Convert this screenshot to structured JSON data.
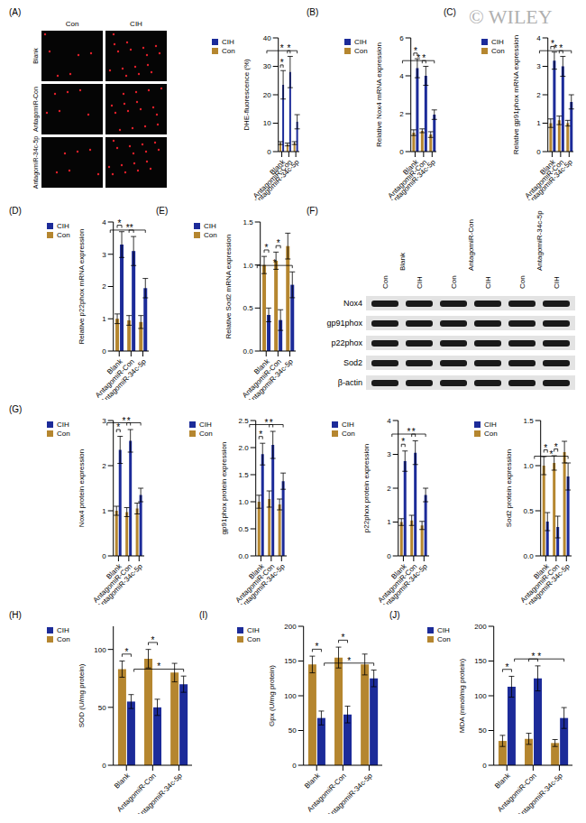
{
  "watermark": "© WILEY",
  "images": {
    "panel": "(A)",
    "columns": [
      "Con",
      "CIH"
    ],
    "rows": [
      "Blank",
      "AntagomiR-Con",
      "AntagomiR-34c-5p"
    ]
  },
  "blot": {
    "panel": "(F)",
    "groups": [
      "Blank",
      "AntagomiR-Con",
      "AntagomiR-34c-5p"
    ],
    "lanes": [
      "Con",
      "CIH"
    ],
    "proteins": [
      "Nox4",
      "gp91phox",
      "p22phox",
      "Sod2",
      "β-actin"
    ]
  },
  "chart_data": [
    {
      "type": "bar",
      "y_label": "DHE-fluorescence (%)",
      "categories": [
        "Blank",
        "AntagomiR-Con",
        "AntagomiR-34c-5p"
      ],
      "series": [
        {
          "name": "Con",
          "color": "#b5862f",
          "values": [
            3,
            2.5,
            3
          ],
          "errors": [
            0.5,
            0.5,
            0.5
          ]
        },
        {
          "name": "CIH",
          "color": "#1c2b99",
          "values": [
            23.5,
            28,
            10.5
          ],
          "errors": [
            5,
            5.5,
            2.5
          ]
        }
      ],
      "ylim": [
        0,
        40
      ],
      "yticks": [
        0,
        10,
        20,
        30,
        40
      ],
      "legend": "upper left",
      "annotations": [
        {
          "text": "*",
          "from": [
            "Blank",
            "Con"
          ],
          "to": [
            "Blank",
            "CIH"
          ]
        },
        {
          "text": "*",
          "from": [
            "AntagomiR-Con",
            "Con"
          ],
          "to": [
            "AntagomiR-Con",
            "CIH"
          ]
        },
        {
          "text": "*",
          "from": [
            "AntagomiR-Con",
            "CIH"
          ],
          "to": [
            "AntagomiR-34c-5p",
            "CIH"
          ]
        }
      ]
    },
    {
      "type": "bar",
      "panel": "(B)",
      "y_label": "Relative Nox4 mRNA expression",
      "categories": [
        "Blank",
        "AntagomiR-Con",
        "AntagomiR-34c-5p"
      ],
      "series": [
        {
          "name": "Con",
          "color": "#b5862f",
          "values": [
            1.0,
            1.1,
            0.9
          ],
          "errors": [
            0.15,
            0.1,
            0.15
          ]
        },
        {
          "name": "CIH",
          "color": "#1c2b99",
          "values": [
            4.4,
            4.0,
            1.95
          ],
          "errors": [
            0.5,
            0.5,
            0.25
          ]
        }
      ],
      "ylim": [
        0,
        6
      ],
      "yticks": [
        0,
        2,
        4,
        6
      ],
      "legend": "upper left",
      "annotations": [
        {
          "text": "*",
          "from": [
            "Blank",
            "Con"
          ],
          "to": [
            "Blank",
            "CIH"
          ]
        },
        {
          "text": "*",
          "from": [
            "AntagomiR-Con",
            "Con"
          ],
          "to": [
            "AntagomiR-Con",
            "CIH"
          ]
        },
        {
          "text": "*",
          "from": [
            "AntagomiR-Con",
            "CIH"
          ],
          "to": [
            "AntagomiR-34c-5p",
            "CIH"
          ]
        }
      ]
    },
    {
      "type": "bar",
      "panel": "(C)",
      "y_label": "Relative gp91phox mRNA expression",
      "categories": [
        "Blank",
        "AntagomiR-Con",
        "AntagomiR-34c-5p"
      ],
      "series": [
        {
          "name": "Con",
          "color": "#b5862f",
          "values": [
            1.0,
            1.1,
            1.0
          ],
          "errors": [
            0.15,
            0.15,
            0.1
          ]
        },
        {
          "name": "CIH",
          "color": "#1c2b99",
          "values": [
            3.2,
            3.0,
            1.75
          ],
          "errors": [
            0.3,
            0.35,
            0.25
          ]
        }
      ],
      "ylim": [
        0,
        4
      ],
      "yticks": [
        0,
        1,
        2,
        3,
        4
      ],
      "legend": "upper left",
      "annotations": [
        {
          "text": "*",
          "from": [
            "Blank",
            "Con"
          ],
          "to": [
            "Blank",
            "CIH"
          ]
        },
        {
          "text": "*",
          "from": [
            "AntagomiR-Con",
            "Con"
          ],
          "to": [
            "AntagomiR-Con",
            "CIH"
          ]
        },
        {
          "text": "*",
          "from": [
            "AntagomiR-Con",
            "CIH"
          ],
          "to": [
            "AntagomiR-34c-5p",
            "CIH"
          ]
        }
      ]
    },
    {
      "type": "bar",
      "panel": "(D)",
      "y_label": "Relative p22phox mRNA expression",
      "categories": [
        "Blank",
        "AntagomiR-Con",
        "AntagomiR-34c-5p"
      ],
      "series": [
        {
          "name": "Con",
          "color": "#b5862f",
          "values": [
            1.0,
            0.95,
            0.9
          ],
          "errors": [
            0.15,
            0.15,
            0.2
          ]
        },
        {
          "name": "CIH",
          "color": "#1c2b99",
          "values": [
            3.3,
            3.1,
            1.95
          ],
          "errors": [
            0.4,
            0.45,
            0.3
          ]
        }
      ],
      "ylim": [
        0,
        4
      ],
      "yticks": [
        0,
        1,
        2,
        3,
        4
      ],
      "legend": "upper left",
      "annotations": [
        {
          "text": "*",
          "from": [
            "Blank",
            "Con"
          ],
          "to": [
            "Blank",
            "CIH"
          ]
        },
        {
          "text": "*",
          "from": [
            "AntagomiR-Con",
            "Con"
          ],
          "to": [
            "AntagomiR-Con",
            "CIH"
          ]
        },
        {
          "text": "*",
          "from": [
            "AntagomiR-Con",
            "CIH"
          ],
          "to": [
            "AntagomiR-34c-5p",
            "CIH"
          ]
        }
      ]
    },
    {
      "type": "bar",
      "panel": "(E)",
      "y_label": "Relative Sod2 mRNA expression",
      "categories": [
        "Blank",
        "AntagomiR-Con",
        "AntagomiR-34c-5p"
      ],
      "series": [
        {
          "name": "Con",
          "color": "#b5862f",
          "values": [
            1.0,
            1.05,
            1.22
          ],
          "errors": [
            0.1,
            0.1,
            0.15
          ]
        },
        {
          "name": "CIH",
          "color": "#1c2b99",
          "values": [
            0.42,
            0.36,
            0.77
          ],
          "errors": [
            0.08,
            0.12,
            0.15
          ]
        }
      ],
      "ylim": [
        0,
        1.5
      ],
      "yticks": [
        {
          "value": 0,
          "label": "0.0"
        },
        0.5,
        {
          "value": 1,
          "label": "1.0"
        },
        1.5
      ],
      "legend": "upper left",
      "annotations": [
        {
          "text": "*",
          "from": [
            "Blank",
            "Con"
          ],
          "to": [
            "Blank",
            "CIH"
          ]
        },
        {
          "text": "*",
          "from": [
            "AntagomiR-Con",
            "Con"
          ],
          "to": [
            "AntagomiR-Con",
            "CIH"
          ]
        },
        {
          "text": "*",
          "from": [
            "AntagomiR-Con",
            "CIH"
          ],
          "to": [
            "AntagomiR-34c-5p",
            "CIH"
          ]
        }
      ]
    },
    {
      "type": "bar",
      "panel": "(G)",
      "y_label": "Nox4 protein expression",
      "categories": [
        "Blank",
        "AntagomiR-Con",
        "AntagomiR-34c-5p"
      ],
      "series": [
        {
          "name": "Con",
          "color": "#b5862f",
          "values": [
            1.0,
            0.97,
            1.05
          ],
          "errors": [
            0.1,
            0.1,
            0.12
          ]
        },
        {
          "name": "CIH",
          "color": "#1c2b99",
          "values": [
            2.35,
            2.55,
            1.35
          ],
          "errors": [
            0.3,
            0.25,
            0.15
          ]
        }
      ],
      "ylim": [
        0,
        3
      ],
      "yticks": [
        0,
        1,
        2,
        3
      ],
      "legend": "upper left",
      "annotations": [
        {
          "text": "*",
          "from": [
            "Blank",
            "Con"
          ],
          "to": [
            "Blank",
            "CIH"
          ]
        },
        {
          "text": "*",
          "from": [
            "AntagomiR-Con",
            "Con"
          ],
          "to": [
            "AntagomiR-Con",
            "CIH"
          ]
        },
        {
          "text": "*",
          "from": [
            "AntagomiR-Con",
            "CIH"
          ],
          "to": [
            "AntagomiR-34c-5p",
            "CIH"
          ]
        }
      ]
    },
    {
      "type": "bar",
      "y_label": "gp91phox protein expression",
      "categories": [
        "Blank",
        "AntagomiR-Con",
        "AntagomiR-34c-5p"
      ],
      "series": [
        {
          "name": "Con",
          "color": "#b5862f",
          "values": [
            1.0,
            1.05,
            0.95
          ],
          "errors": [
            0.12,
            0.15,
            0.1
          ]
        },
        {
          "name": "CIH",
          "color": "#1c2b99",
          "values": [
            1.88,
            2.05,
            1.38
          ],
          "errors": [
            0.2,
            0.25,
            0.15
          ]
        }
      ],
      "ylim": [
        0,
        2.5
      ],
      "yticks": [
        {
          "value": 0,
          "label": "0.0"
        },
        0.5,
        {
          "value": 1,
          "label": "1.0"
        },
        1.5,
        {
          "value": 2,
          "label": "2.0"
        },
        2.5
      ],
      "legend": "upper left",
      "annotations": [
        {
          "text": "*",
          "from": [
            "Blank",
            "Con"
          ],
          "to": [
            "Blank",
            "CIH"
          ]
        },
        {
          "text": "*",
          "from": [
            "AntagomiR-Con",
            "Con"
          ],
          "to": [
            "AntagomiR-Con",
            "CIH"
          ]
        },
        {
          "text": "*",
          "from": [
            "AntagomiR-Con",
            "CIH"
          ],
          "to": [
            "AntagomiR-34c-5p",
            "CIH"
          ]
        }
      ]
    },
    {
      "type": "bar",
      "y_label": "p22phox protein expression",
      "categories": [
        "Blank",
        "AntagomiR-Con",
        "AntagomiR-34c-5p"
      ],
      "series": [
        {
          "name": "Con",
          "color": "#b5862f",
          "values": [
            1.0,
            1.05,
            0.9
          ],
          "errors": [
            0.1,
            0.15,
            0.12
          ]
        },
        {
          "name": "CIH",
          "color": "#1c2b99",
          "values": [
            2.8,
            3.05,
            1.8
          ],
          "errors": [
            0.3,
            0.35,
            0.2
          ]
        }
      ],
      "ylim": [
        0,
        4
      ],
      "yticks": [
        0,
        1,
        2,
        3,
        4
      ],
      "legend": "upper left",
      "annotations": [
        {
          "text": "*",
          "from": [
            "Blank",
            "Con"
          ],
          "to": [
            "Blank",
            "CIH"
          ]
        },
        {
          "text": "*",
          "from": [
            "AntagomiR-Con",
            "Con"
          ],
          "to": [
            "AntagomiR-Con",
            "CIH"
          ]
        },
        {
          "text": "*",
          "from": [
            "AntagomiR-Con",
            "CIH"
          ],
          "to": [
            "AntagomiR-34c-5p",
            "CIH"
          ]
        }
      ]
    },
    {
      "type": "bar",
      "y_label": "Sod2 protein expression",
      "categories": [
        "Blank",
        "AntagomiR-Con",
        "AntagomiR-34c-5p"
      ],
      "series": [
        {
          "name": "Con",
          "color": "#b5862f",
          "values": [
            1.0,
            1.03,
            1.15
          ],
          "errors": [
            0.1,
            0.08,
            0.12
          ]
        },
        {
          "name": "CIH",
          "color": "#1c2b99",
          "values": [
            0.38,
            0.32,
            0.88
          ],
          "errors": [
            0.1,
            0.12,
            0.15
          ]
        }
      ],
      "ylim": [
        0,
        1.5
      ],
      "yticks": [
        {
          "value": 0,
          "label": "0.0"
        },
        0.5,
        {
          "value": 1,
          "label": "1.0"
        },
        1.5
      ],
      "legend": "upper left",
      "annotations": [
        {
          "text": "*",
          "from": [
            "Blank",
            "Con"
          ],
          "to": [
            "Blank",
            "CIH"
          ]
        },
        {
          "text": "*",
          "from": [
            "AntagomiR-Con",
            "Con"
          ],
          "to": [
            "AntagomiR-Con",
            "CIH"
          ]
        },
        {
          "text": "*",
          "from": [
            "AntagomiR-Con",
            "CIH"
          ],
          "to": [
            "AntagomiR-34c-5p",
            "CIH"
          ]
        }
      ]
    },
    {
      "type": "bar",
      "panel": "(H)",
      "y_label": "SOD (U/mg protein)",
      "categories": [
        "Blank",
        "AntagomiR-Con",
        "AntagomiR-34c-5p"
      ],
      "series": [
        {
          "name": "Con",
          "color": "#b5862f",
          "values": [
            83,
            92,
            80
          ],
          "errors": [
            7,
            8,
            8
          ]
        },
        {
          "name": "CIH",
          "color": "#1c2b99",
          "values": [
            55,
            50,
            70
          ],
          "errors": [
            6,
            7,
            7
          ]
        }
      ],
      "ylim": [
        0,
        120
      ],
      "yticks": [
        0,
        50,
        100
      ],
      "legend": "upper left",
      "annotations": [
        {
          "text": "*",
          "from": [
            "Blank",
            "Con"
          ],
          "to": [
            "Blank",
            "CIH"
          ]
        },
        {
          "text": "*",
          "from": [
            "AntagomiR-Con",
            "Con"
          ],
          "to": [
            "AntagomiR-Con",
            "CIH"
          ]
        },
        {
          "text": "*",
          "from": [
            "AntagomiR-Con",
            "CIH"
          ],
          "to": [
            "AntagomiR-34c-5p",
            "CIH"
          ]
        }
      ]
    },
    {
      "type": "bar",
      "panel": "(I)",
      "y_label": "Gpx (U/mg protein)",
      "categories": [
        "Blank",
        "AntagomiR-Con",
        "AntagomiR-34c-5p"
      ],
      "series": [
        {
          "name": "Con",
          "color": "#b5862f",
          "values": [
            145,
            155,
            145
          ],
          "errors": [
            12,
            15,
            15
          ]
        },
        {
          "name": "CIH",
          "color": "#1c2b99",
          "values": [
            68,
            73,
            125
          ],
          "errors": [
            10,
            12,
            12
          ]
        }
      ],
      "ylim": [
        0,
        200
      ],
      "yticks": [
        0,
        50,
        100,
        150,
        200
      ],
      "legend": "upper left",
      "annotations": [
        {
          "text": "*",
          "from": [
            "Blank",
            "Con"
          ],
          "to": [
            "Blank",
            "CIH"
          ]
        },
        {
          "text": "*",
          "from": [
            "AntagomiR-Con",
            "Con"
          ],
          "to": [
            "AntagomiR-Con",
            "CIH"
          ]
        },
        {
          "text": "*",
          "from": [
            "AntagomiR-Con",
            "CIH"
          ],
          "to": [
            "AntagomiR-34c-5p",
            "CIH"
          ]
        }
      ]
    },
    {
      "type": "bar",
      "panel": "(J)",
      "y_label": "MDA (nmol/mg protein)",
      "categories": [
        "Blank",
        "AntagomiR-Con",
        "AntagomiR-34c-5p"
      ],
      "series": [
        {
          "name": "Con",
          "color": "#b5862f",
          "values": [
            35,
            38,
            32
          ],
          "errors": [
            8,
            8,
            5
          ]
        },
        {
          "name": "CIH",
          "color": "#1c2b99",
          "values": [
            113,
            125,
            68
          ],
          "errors": [
            15,
            18,
            15
          ]
        }
      ],
      "ylim": [
        0,
        200
      ],
      "yticks": [
        0,
        50,
        100,
        150,
        200
      ],
      "legend": "upper left",
      "annotations": [
        {
          "text": "*",
          "from": [
            "Blank",
            "Con"
          ],
          "to": [
            "Blank",
            "CIH"
          ]
        },
        {
          "text": "*",
          "from": [
            "AntagomiR-Con",
            "Con"
          ],
          "to": [
            "AntagomiR-Con",
            "CIH"
          ]
        },
        {
          "text": "*",
          "from": [
            "AntagomiR-Con",
            "CIH"
          ],
          "to": [
            "AntagomiR-34c-5p",
            "CIH"
          ]
        }
      ]
    }
  ]
}
